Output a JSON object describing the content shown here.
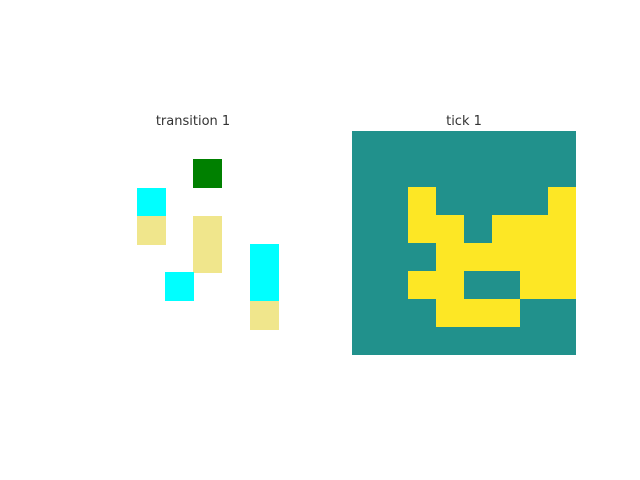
{
  "panels": [
    {
      "title": "transition 1",
      "background": "#ffffff",
      "rows": 8,
      "cols": 8,
      "cells": [
        {
          "row": 1,
          "col": 4,
          "color": "#008000"
        },
        {
          "row": 2,
          "col": 2,
          "color": "#00ffff"
        },
        {
          "row": 3,
          "col": 2,
          "color": "#f0e68c"
        },
        {
          "row": 3,
          "col": 4,
          "color": "#f0e68c"
        },
        {
          "row": 4,
          "col": 4,
          "color": "#f0e68c"
        },
        {
          "row": 4,
          "col": 6,
          "color": "#00ffff"
        },
        {
          "row": 5,
          "col": 6,
          "color": "#00ffff"
        },
        {
          "row": 5,
          "col": 3,
          "color": "#00ffff"
        },
        {
          "row": 6,
          "col": 6,
          "color": "#f0e68c"
        }
      ]
    },
    {
      "title": "tick 1",
      "background": "#21918c",
      "rows": 8,
      "cols": 8,
      "cells": [
        {
          "row": 2,
          "col": 2,
          "color": "#fde725"
        },
        {
          "row": 2,
          "col": 7,
          "color": "#fde725"
        },
        {
          "row": 3,
          "col": 2,
          "color": "#fde725"
        },
        {
          "row": 3,
          "col": 3,
          "color": "#fde725"
        },
        {
          "row": 3,
          "col": 5,
          "color": "#fde725"
        },
        {
          "row": 3,
          "col": 6,
          "color": "#fde725"
        },
        {
          "row": 3,
          "col": 7,
          "color": "#fde725"
        },
        {
          "row": 4,
          "col": 3,
          "color": "#fde725"
        },
        {
          "row": 4,
          "col": 4,
          "color": "#fde725"
        },
        {
          "row": 4,
          "col": 5,
          "color": "#fde725"
        },
        {
          "row": 4,
          "col": 6,
          "color": "#fde725"
        },
        {
          "row": 4,
          "col": 7,
          "color": "#fde725"
        },
        {
          "row": 5,
          "col": 2,
          "color": "#fde725"
        },
        {
          "row": 5,
          "col": 3,
          "color": "#fde725"
        },
        {
          "row": 5,
          "col": 6,
          "color": "#fde725"
        },
        {
          "row": 5,
          "col": 7,
          "color": "#fde725"
        },
        {
          "row": 6,
          "col": 3,
          "color": "#fde725"
        },
        {
          "row": 6,
          "col": 4,
          "color": "#fde725"
        },
        {
          "row": 6,
          "col": 5,
          "color": "#fde725"
        }
      ]
    }
  ]
}
